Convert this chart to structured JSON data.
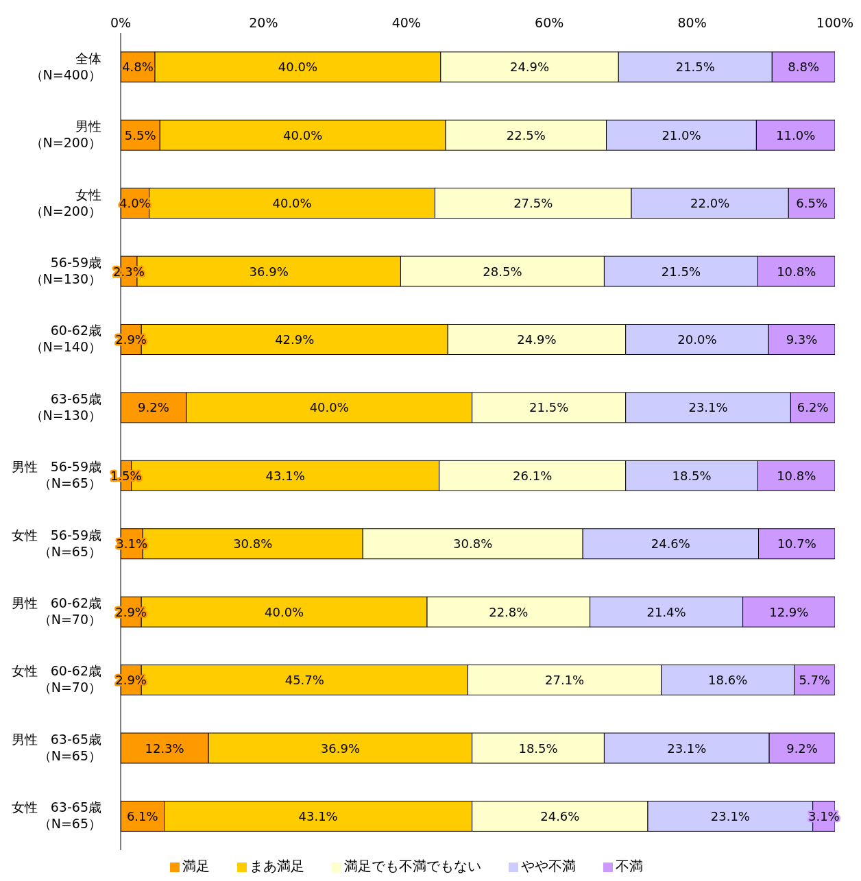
{
  "chart_data": {
    "type": "bar",
    "orientation": "horizontal",
    "stacked": true,
    "categories": [
      "全体（N=400）",
      "男性（N=200）",
      "女性（N=200）",
      "56-59歳（N=130）",
      "60-62歳（N=140）",
      "63-65歳（N=130）",
      "男性　56-59歳（N=65）",
      "女性　56-59歳（N=65）",
      "男性　60-62歳（N=70）",
      "女性　60-62歳（N=70）",
      "男性　63-65歳（N=65）",
      "女性　63-65歳（N=65）"
    ],
    "series": [
      {
        "name": "満足",
        "color": "#ff9900",
        "values": [
          4.8,
          5.5,
          4.0,
          2.3,
          2.9,
          9.2,
          1.5,
          3.1,
          2.9,
          2.9,
          12.3,
          6.1
        ],
        "value_labels": [
          "4.8%",
          "5.5%",
          "4.0%",
          "2.3%",
          "2.9%",
          "9.2%",
          "1.5%",
          "3.1%",
          "2.9%",
          "2.9%",
          "12.3%",
          "6.1%"
        ]
      },
      {
        "name": "まあ満足",
        "color": "#ffcc00",
        "values": [
          40.0,
          40.0,
          40.0,
          36.9,
          42.9,
          40.0,
          43.1,
          30.8,
          40.0,
          45.7,
          36.9,
          43.1
        ],
        "value_labels": [
          "40.0%",
          "40.0%",
          "40.0%",
          "36.9%",
          "42.9%",
          "40.0%",
          "43.1%",
          "30.8%",
          "40.0%",
          "45.7%",
          "36.9%",
          "43.1%"
        ]
      },
      {
        "name": "満足でも不満でもない",
        "color": "#ffffcc",
        "values": [
          24.9,
          22.5,
          27.5,
          28.5,
          24.9,
          21.5,
          26.1,
          30.8,
          22.8,
          27.1,
          18.5,
          24.6
        ],
        "value_labels": [
          "24.9%",
          "22.5%",
          "27.5%",
          "28.5%",
          "24.9%",
          "21.5%",
          "26.1%",
          "30.8%",
          "22.8%",
          "27.1%",
          "18.5%",
          "24.6%"
        ]
      },
      {
        "name": "やや不満",
        "color": "#ccccff",
        "values": [
          21.5,
          21.0,
          22.0,
          21.5,
          20.0,
          23.1,
          18.5,
          24.6,
          21.4,
          18.6,
          23.1,
          23.1
        ],
        "value_labels": [
          "21.5%",
          "21.0%",
          "22.0%",
          "21.5%",
          "20.0%",
          "23.1%",
          "18.5%",
          "24.6%",
          "21.4%",
          "18.6%",
          "23.1%",
          "23.1%"
        ]
      },
      {
        "name": "不満",
        "color": "#cc99ff",
        "values": [
          8.8,
          11.0,
          6.5,
          10.8,
          9.3,
          6.2,
          10.8,
          10.7,
          12.9,
          5.7,
          9.2,
          3.1
        ],
        "value_labels": [
          "8.8%",
          "11.0%",
          "6.5%",
          "10.8%",
          "9.3%",
          "6.2%",
          "10.8%",
          "10.7%",
          "12.9%",
          "5.7%",
          "9.2%",
          "3.1%"
        ]
      }
    ],
    "xlim": [
      0,
      100
    ],
    "xticks": [
      {
        "value": 0,
        "label": "0%"
      },
      {
        "value": 20,
        "label": "20%"
      },
      {
        "value": 40,
        "label": "40%"
      },
      {
        "value": 60,
        "label": "60%"
      },
      {
        "value": 80,
        "label": "80%"
      },
      {
        "value": 100,
        "label": "100%"
      }
    ],
    "grid": false,
    "legend": "bottom"
  }
}
